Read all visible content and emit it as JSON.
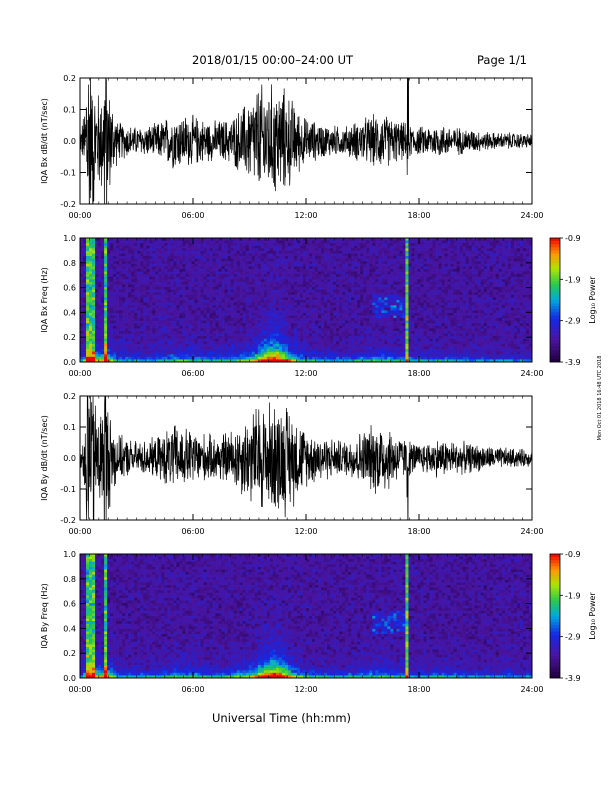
{
  "header": {
    "title": "2018/01/15  00:00–24:00 UT",
    "page": "Page 1/1"
  },
  "footer": {
    "xlabel": "Universal Time (hh:mm)"
  },
  "side_text": "Mon Oct 01 2018 16:48 UTC 2018",
  "colorbar": {
    "label": "Log₁₀ Power",
    "ticks": [
      "-0.9",
      "-1.9",
      "-2.9",
      "-3.9"
    ],
    "range": [
      -3.9,
      -0.9
    ]
  },
  "chart_data": [
    {
      "type": "line",
      "ylabel": "IQA Bx dB/dt (nT/sec)",
      "xlim": [
        "00:00",
        "24:00"
      ],
      "ylim": [
        -0.2,
        0.2
      ],
      "x_ticks": [
        "00:00",
        "06:00",
        "12:00",
        "18:00",
        "24:00"
      ],
      "y_ticks": [
        "0.2",
        "0.1",
        "0.0",
        "-0.1",
        "-0.2"
      ],
      "envelope_hours": [
        0,
        0.5,
        1,
        1.5,
        2,
        3,
        4,
        5,
        6,
        7,
        8,
        9,
        9.5,
        10,
        10.5,
        11,
        11.5,
        12,
        13,
        14,
        15,
        16,
        17,
        18,
        19,
        20,
        21,
        22,
        23,
        24
      ],
      "envelope_amplitude": [
        0.03,
        0.2,
        0.18,
        0.2,
        0.07,
        0.05,
        0.06,
        0.1,
        0.09,
        0.07,
        0.08,
        0.15,
        0.2,
        0.2,
        0.2,
        0.18,
        0.12,
        0.08,
        0.06,
        0.05,
        0.08,
        0.1,
        0.07,
        0.05,
        0.06,
        0.05,
        0.04,
        0.03,
        0.03,
        0.025
      ]
    },
    {
      "type": "heatmap",
      "ylabel": "IQA Bx Freq (Hz)",
      "xlim": [
        "00:00",
        "24:00"
      ],
      "ylim": [
        0.0,
        1.0
      ],
      "x_ticks": [
        "00:00",
        "06:00",
        "12:00",
        "18:00",
        "24:00"
      ],
      "y_ticks": [
        "1.0",
        "0.8",
        "0.6",
        "0.4",
        "0.2",
        "0.0"
      ]
    },
    {
      "type": "line",
      "ylabel": "IQA By dB/dt (nT/sec)",
      "xlim": [
        "00:00",
        "24:00"
      ],
      "ylim": [
        -0.2,
        0.2
      ],
      "x_ticks": [
        "00:00",
        "06:00",
        "12:00",
        "18:00",
        "24:00"
      ],
      "y_ticks": [
        "0.2",
        "0.1",
        "0.0",
        "-0.1",
        "-0.2"
      ],
      "envelope_hours": [
        0,
        0.5,
        1,
        1.5,
        2,
        3,
        4,
        5,
        6,
        7,
        8,
        9,
        9.5,
        10,
        10.5,
        11,
        11.5,
        12,
        13,
        14,
        15,
        16,
        17,
        18,
        19,
        20,
        21,
        22,
        23,
        24
      ],
      "envelope_amplitude": [
        0.03,
        0.2,
        0.2,
        0.2,
        0.08,
        0.06,
        0.07,
        0.12,
        0.1,
        0.08,
        0.1,
        0.16,
        0.2,
        0.2,
        0.2,
        0.2,
        0.15,
        0.1,
        0.08,
        0.06,
        0.1,
        0.14,
        0.08,
        0.05,
        0.07,
        0.06,
        0.05,
        0.04,
        0.035,
        0.03
      ]
    },
    {
      "type": "heatmap",
      "ylabel": "IQA By Freq (Hz)",
      "xlim": [
        "00:00",
        "24:00"
      ],
      "ylim": [
        0.0,
        1.0
      ],
      "x_ticks": [
        "00:00",
        "06:00",
        "12:00",
        "18:00",
        "24:00"
      ],
      "y_ticks": [
        "1.0",
        "0.8",
        "0.6",
        "0.4",
        "0.2",
        "0.0"
      ]
    }
  ]
}
